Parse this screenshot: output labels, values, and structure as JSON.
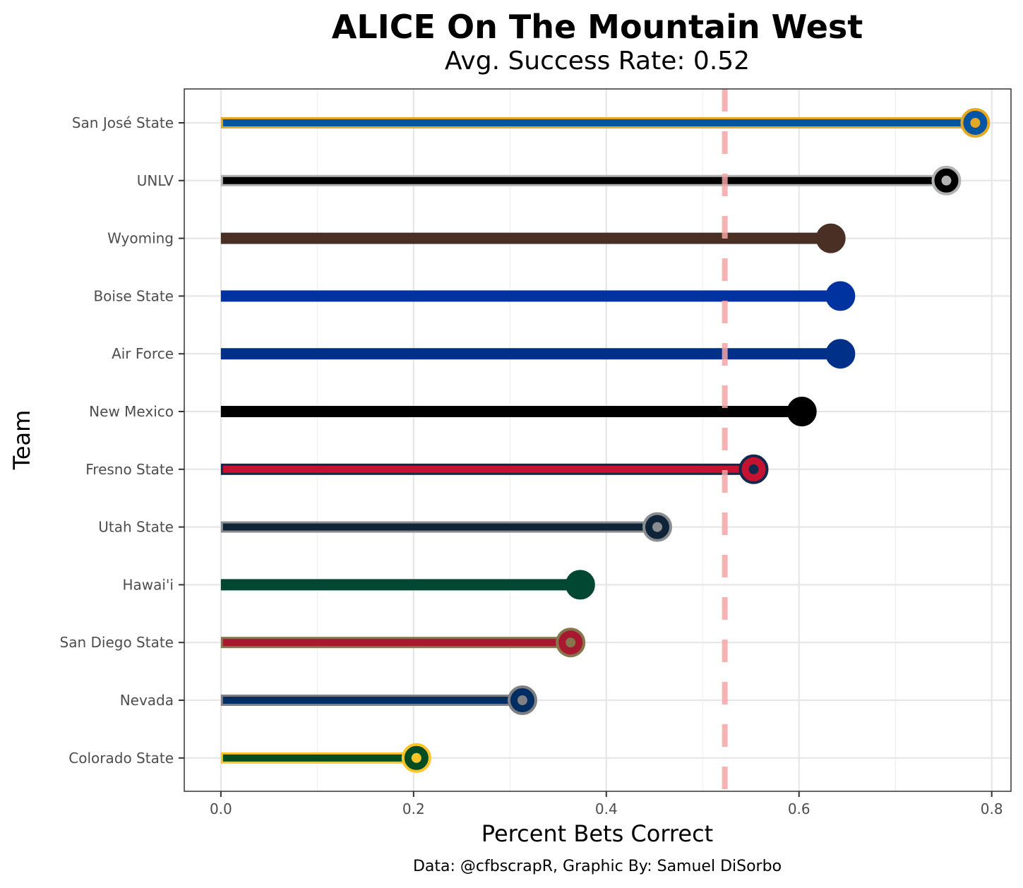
{
  "chart_data": {
    "type": "bar",
    "orientation": "horizontal",
    "title": "ALICE On The Mountain West",
    "subtitle": "Avg. Success Rate: 0.52",
    "xlabel": "Percent Bets Correct",
    "ylabel": "Team",
    "caption": "Data: @cfbscrapR, Graphic By: Samuel DiSorbo",
    "xlim": [
      -0.038,
      0.82
    ],
    "xticks": [
      {
        "value": 0.0,
        "label": "0.0"
      },
      {
        "value": 0.2,
        "label": "0.2"
      },
      {
        "value": 0.4,
        "label": "0.4"
      },
      {
        "value": 0.6,
        "label": "0.6"
      },
      {
        "value": 0.8,
        "label": "0.8"
      }
    ],
    "grid": true,
    "reference_line": {
      "value": 0.523,
      "style": "dashed",
      "color": "#f4a4a6"
    },
    "categories": [
      "San José State",
      "UNLV",
      "Wyoming",
      "Boise State",
      "Air Force",
      "New Mexico",
      "Fresno State",
      "Utah State",
      "Hawai'i",
      "San Diego State",
      "Nevada",
      "Colorado State"
    ],
    "values": [
      0.78,
      0.75,
      0.63,
      0.64,
      0.64,
      0.6,
      0.55,
      0.45,
      0.37,
      0.36,
      0.31,
      0.2
    ],
    "colors": {
      "primary": [
        "#0055a2",
        "#000000",
        "#492f24",
        "#0033a0",
        "#003087",
        "#000000",
        "#c41230",
        "#0f2439",
        "#024731",
        "#a6192e",
        "#002e62",
        "#004c23"
      ],
      "outline": [
        "#e5a823",
        "#b1b3b3",
        "#492f24",
        "#0033a0",
        "#003087",
        "#000000",
        "#13284c",
        "#8a8d8f",
        "#024731",
        "#86754d",
        "#807f84",
        "#ffc425"
      ]
    },
    "logos": [
      "spartan-logo",
      "unlv-logo",
      "cowboy-logo",
      "bronco-logo",
      "af-logo",
      "lobo-logo",
      "bulldog-logo",
      "u-state-logo",
      "h-logo",
      "sd-logo",
      "wolf-pack-logo",
      "ram-logo"
    ]
  }
}
